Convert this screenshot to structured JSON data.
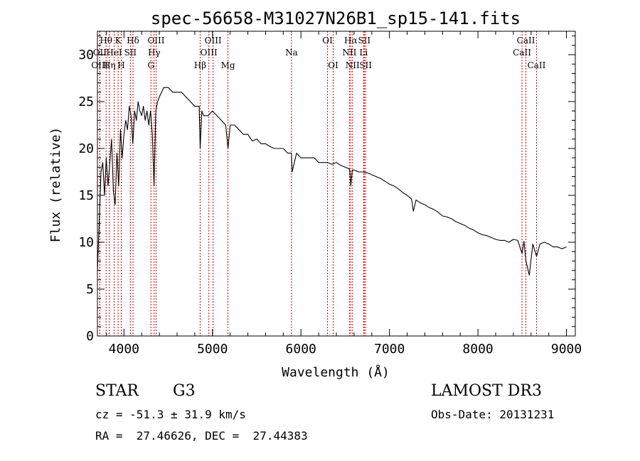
{
  "chart_data": {
    "type": "line",
    "title": "spec-56658-M31027N26B1_sp15-141.fits",
    "xlabel": "Wavelength (Å)",
    "ylabel": "Flux (relative)",
    "xlim": [
      3700,
      9100
    ],
    "ylim": [
      0,
      32.5
    ],
    "x_ticks": [
      4000,
      5000,
      6000,
      7000,
      8000,
      9000
    ],
    "y_ticks": [
      0,
      5,
      10,
      15,
      20,
      25,
      30
    ],
    "grid": false,
    "series": [
      {
        "color": "#000000",
        "x": [
          3700,
          3720,
          3740,
          3760,
          3780,
          3800,
          3820,
          3840,
          3860,
          3880,
          3900,
          3920,
          3940,
          3960,
          3980,
          4000,
          4020,
          4040,
          4060,
          4080,
          4100,
          4120,
          4140,
          4160,
          4180,
          4200,
          4220,
          4240,
          4260,
          4280,
          4300,
          4320,
          4340,
          4360,
          4380,
          4400,
          4450,
          4500,
          4550,
          4600,
          4650,
          4700,
          4750,
          4800,
          4850,
          4861,
          4880,
          4900,
          4950,
          5000,
          5050,
          5100,
          5150,
          5175,
          5200,
          5250,
          5300,
          5350,
          5400,
          5450,
          5500,
          5550,
          5600,
          5650,
          5700,
          5750,
          5800,
          5850,
          5893,
          5900,
          5950,
          6000,
          6050,
          6100,
          6150,
          6200,
          6250,
          6300,
          6350,
          6400,
          6450,
          6500,
          6550,
          6563,
          6580,
          6600,
          6650,
          6700,
          6750,
          6800,
          6850,
          6900,
          6950,
          7000,
          7050,
          7100,
          7150,
          7200,
          7250,
          7270,
          7300,
          7350,
          7400,
          7450,
          7500,
          7550,
          7600,
          7650,
          7700,
          7750,
          7800,
          7850,
          7900,
          7950,
          8000,
          8050,
          8100,
          8150,
          8200,
          8250,
          8300,
          8350,
          8400,
          8450,
          8498,
          8520,
          8542,
          8580,
          8620,
          8662,
          8700,
          8750,
          8800,
          8850,
          8900,
          8950,
          9000
        ],
        "values": [
          7.0,
          12.0,
          17.5,
          18.5,
          15.0,
          19.0,
          16.0,
          18.5,
          21.0,
          15.5,
          14.0,
          19.5,
          16.0,
          22.0,
          19.0,
          21.5,
          23.0,
          22.0,
          24.5,
          23.5,
          20.5,
          24.0,
          23.0,
          25.0,
          24.0,
          23.5,
          24.5,
          23.0,
          24.0,
          22.5,
          24.0,
          21.5,
          16.0,
          24.0,
          25.0,
          25.5,
          26.5,
          26.5,
          26.0,
          26.0,
          26.0,
          25.5,
          25.0,
          24.5,
          24.5,
          20.0,
          24.0,
          23.5,
          23.5,
          24.0,
          23.5,
          23.0,
          22.5,
          20.0,
          22.5,
          22.5,
          22.0,
          21.5,
          21.5,
          20.8,
          21.0,
          20.5,
          20.5,
          20.2,
          20.0,
          20.0,
          20.0,
          19.5,
          19.5,
          17.5,
          19.5,
          19.0,
          19.0,
          19.0,
          19.0,
          18.5,
          18.5,
          18.5,
          18.3,
          18.5,
          18.2,
          18.0,
          17.8,
          16.0,
          17.7,
          17.7,
          17.5,
          17.5,
          17.4,
          17.2,
          17.0,
          16.8,
          16.5,
          16.2,
          16.0,
          15.7,
          15.3,
          15.0,
          14.6,
          13.3,
          14.5,
          14.2,
          14.0,
          13.7,
          13.5,
          13.2,
          12.8,
          12.7,
          12.5,
          12.2,
          12.0,
          11.8,
          11.5,
          11.3,
          11.0,
          10.8,
          10.7,
          10.5,
          10.3,
          10.2,
          10.2,
          10.0,
          10.3,
          10.2,
          8.8,
          10.1,
          8.0,
          6.5,
          9.8,
          8.5,
          9.8,
          10.0,
          9.8,
          9.5,
          9.5,
          9.3,
          9.5
        ]
      }
    ],
    "lines": [
      {
        "label": "Hθ",
        "x": 3798,
        "row": 0
      },
      {
        "label": "OII",
        "x": 3727,
        "row": 1
      },
      {
        "label": "OIII",
        "x": 3727,
        "row": 2
      },
      {
        "label": "Hη",
        "x": 3835,
        "row": 2
      },
      {
        "label": "K",
        "x": 3934,
        "row": 0
      },
      {
        "label": "HeI",
        "x": 3889,
        "row": 1
      },
      {
        "label": "H",
        "x": 3969,
        "row": 2
      },
      {
        "label": "SII",
        "x": 4072,
        "row": 1
      },
      {
        "label": "Hδ",
        "x": 4102,
        "row": 0
      },
      {
        "label": "G",
        "x": 4305,
        "row": 2
      },
      {
        "label": "OIII",
        "x": 4363,
        "row": 0
      },
      {
        "label": "Hγ",
        "x": 4341,
        "row": 1
      },
      {
        "label": "Hβ",
        "x": 4861,
        "row": 2
      },
      {
        "label": "OIII",
        "x": 4959,
        "row": 1
      },
      {
        "label": "OIII",
        "x": 5007,
        "row": 0
      },
      {
        "label": "Mg",
        "x": 5175,
        "row": 2
      },
      {
        "label": "Na",
        "x": 5893,
        "row": 1
      },
      {
        "label": "OI",
        "x": 6300,
        "row": 0
      },
      {
        "label": "OI",
        "x": 6364,
        "row": 2
      },
      {
        "label": "Hα",
        "x": 6563,
        "row": 0
      },
      {
        "label": "NII",
        "x": 6548,
        "row": 1
      },
      {
        "label": "NII",
        "x": 6583,
        "row": 2
      },
      {
        "label": "SII",
        "x": 6716,
        "row": 0
      },
      {
        "label": "Li",
        "x": 6708,
        "row": 1
      },
      {
        "label": "SII",
        "x": 6731,
        "row": 2
      },
      {
        "label": "CaII",
        "x": 8542,
        "row": 0
      },
      {
        "label": "CaII",
        "x": 8498,
        "row": 1
      },
      {
        "label": "CaII",
        "x": 8662,
        "row": 2
      }
    ]
  },
  "info": {
    "object_class": "STAR",
    "subclass": "G3",
    "survey": "LAMOST DR3",
    "redshift_text": "cz = -51.3 ± 31.9 km/s",
    "obs_date_text": "Obs-Date: 20131231",
    "coords_text": "RA =  27.46626, DEC =  27.44383"
  }
}
